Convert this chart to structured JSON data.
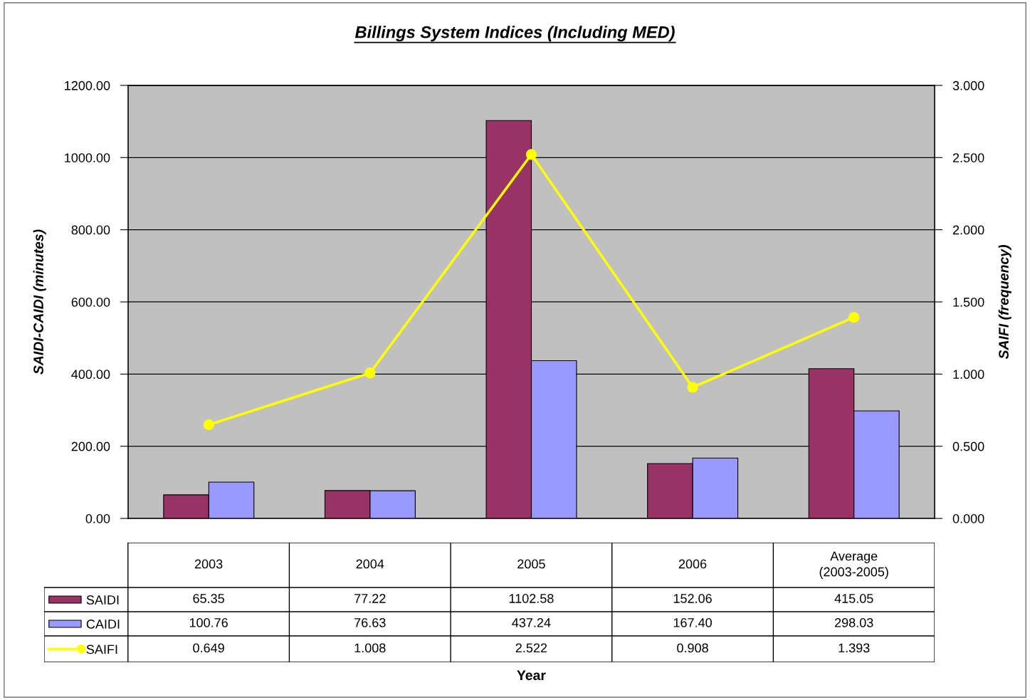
{
  "chart_data": {
    "type": "bar",
    "title": "Billings System Indices (Including MED)",
    "annotations": [
      "Year"
    ],
    "ylabel": "SAIDI-CAIDI (minutes)",
    "y2label": "SAIFI (frequency)",
    "categories": [
      "2003",
      "2004",
      "2005",
      "2006",
      "Average\n(2003-2005)"
    ],
    "series": [
      {
        "name": "SAIDI",
        "color": "#993366",
        "values": [
          65.35,
          77.22,
          1102.58,
          152.06,
          415.05
        ],
        "value_labels": [
          "65.35",
          "77.22",
          "1102.58",
          "152.06",
          "415.05"
        ]
      },
      {
        "name": "CAIDI",
        "color": "#9999ff",
        "values": [
          100.76,
          76.63,
          437.24,
          167.4,
          298.03
        ],
        "value_labels": [
          "100.76",
          "76.63",
          "437.24",
          "167.40",
          "298.03"
        ]
      },
      {
        "name": "SAIFI",
        "type": "line",
        "axis": "y2",
        "color": "#ffff00",
        "marker": "circle",
        "values": [
          0.649,
          1.008,
          2.522,
          0.908,
          1.393
        ],
        "value_labels": [
          "0.649",
          "1.008",
          "2.522",
          "0.908",
          "1.393"
        ]
      }
    ],
    "ylim": [
      0,
      1200
    ],
    "yticks": [
      {
        "value": 0,
        "label": "0.00"
      },
      {
        "value": 200,
        "label": "200.00"
      },
      {
        "value": 400,
        "label": "400.00"
      },
      {
        "value": 600,
        "label": "600.00"
      },
      {
        "value": 800,
        "label": "800.00"
      },
      {
        "value": 1000,
        "label": "1000.00"
      },
      {
        "value": 1200,
        "label": "1200.00"
      }
    ],
    "y2lim": [
      0,
      3
    ],
    "y2ticks": [
      {
        "value": 0,
        "label": "0.000"
      },
      {
        "value": 0.5,
        "label": "0.500"
      },
      {
        "value": 1,
        "label": "1.000"
      },
      {
        "value": 1.5,
        "label": "1.500"
      },
      {
        "value": 2,
        "label": "2.000"
      },
      {
        "value": 2.5,
        "label": "2.500"
      },
      {
        "value": 3,
        "label": "3.000"
      }
    ],
    "grid": "y",
    "legend": "bottom"
  }
}
